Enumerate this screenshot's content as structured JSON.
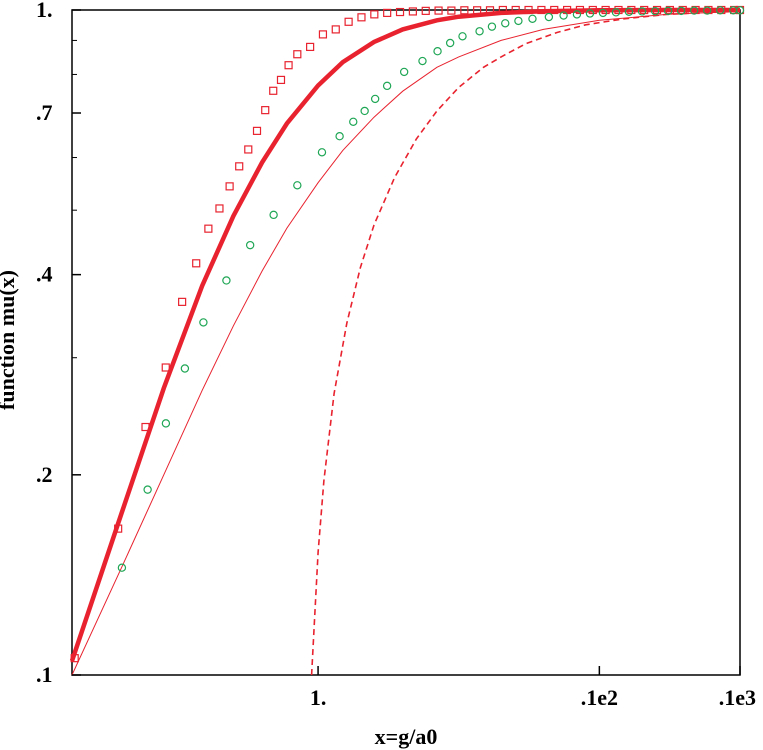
{
  "chart_data": {
    "type": "line",
    "title": "",
    "xlabel": "x=g/a0",
    "ylabel": "function mu(x)",
    "x_scale": "log",
    "y_scale": "log",
    "xlim": [
      0.0178,
      1000
    ],
    "ylim": [
      0.1,
      1.0
    ],
    "x_ticks": [
      {
        "value": 1,
        "label": "1."
      },
      {
        "value": 100,
        "label": ".1e2"
      },
      {
        "value": 1000,
        "label": ".1e3"
      }
    ],
    "y_ticks": [
      {
        "value": 0.1,
        "label": ".1"
      },
      {
        "value": 0.2,
        "label": ".2"
      },
      {
        "value": 0.4,
        "label": ".4"
      },
      {
        "value": 0.7,
        "label": ".7"
      },
      {
        "value": 1.0,
        "label": "1."
      }
    ],
    "y_minor_ticks": [
      0.3,
      0.5,
      0.6,
      0.8,
      0.9
    ],
    "grid": false,
    "series": [
      {
        "style": "thick-line",
        "color": "#e8232f",
        "x": [
          0.0178,
          0.04,
          0.08,
          0.15,
          0.25,
          0.4,
          0.6,
          1.0,
          1.5,
          2.5,
          4,
          7,
          10,
          20,
          40,
          100,
          300,
          1000
        ],
        "y": [
          0.105,
          0.175,
          0.27,
          0.385,
          0.49,
          0.59,
          0.675,
          0.77,
          0.835,
          0.895,
          0.935,
          0.965,
          0.977,
          0.99,
          0.996,
          0.999,
          1.0,
          1.0
        ]
      },
      {
        "style": "thin-line",
        "color": "#e8232f",
        "x": [
          0.0178,
          0.04,
          0.08,
          0.15,
          0.25,
          0.4,
          0.6,
          1.0,
          1.5,
          2.5,
          4,
          7,
          10,
          20,
          40,
          100,
          300,
          1000
        ],
        "y": [
          0.1,
          0.145,
          0.2,
          0.268,
          0.335,
          0.405,
          0.47,
          0.55,
          0.615,
          0.69,
          0.755,
          0.82,
          0.85,
          0.9,
          0.935,
          0.965,
          0.985,
          0.995
        ]
      },
      {
        "style": "dashed-line",
        "color": "#e8232f",
        "x": [
          0.9,
          1.0,
          1.1,
          1.3,
          1.6,
          2.0,
          2.5,
          3.5,
          5,
          7,
          10,
          15,
          20,
          30,
          50,
          80,
          150,
          300,
          600,
          1000
        ],
        "y": [
          0.1,
          0.153,
          0.196,
          0.265,
          0.338,
          0.41,
          0.475,
          0.56,
          0.64,
          0.705,
          0.765,
          0.82,
          0.85,
          0.89,
          0.925,
          0.95,
          0.97,
          0.985,
          0.992,
          0.995
        ]
      },
      {
        "style": "square-markers",
        "color": "#e8232f",
        "x": [
          0.0186,
          0.0379,
          0.0593,
          0.0826,
          0.108,
          0.136,
          0.166,
          0.199,
          0.235,
          0.275,
          0.319,
          0.368,
          0.421,
          0.48,
          0.545,
          0.617,
          0.712,
          0.878,
          1.083,
          1.336,
          1.649,
          2.035,
          2.512,
          3.1,
          3.826,
          4.722,
          5.828,
          7.19,
          8.87,
          10.97,
          13.52,
          16.69,
          20.6,
          25.42,
          31.37,
          38.72,
          47.78,
          58.97,
          72.78,
          89.82,
          110.8,
          136.8,
          168.8,
          208.3,
          257.1,
          317.3,
          391.6,
          483.3,
          596.5,
          736.1,
          908.5,
          1000
        ],
        "y": [
          0.106,
          0.166,
          0.236,
          0.29,
          0.364,
          0.416,
          0.469,
          0.503,
          0.543,
          0.582,
          0.617,
          0.658,
          0.707,
          0.756,
          0.785,
          0.826,
          0.858,
          0.88,
          0.919,
          0.935,
          0.96,
          0.975,
          0.985,
          0.99,
          0.993,
          0.995,
          0.997,
          0.998,
          0.998,
          0.999,
          0.999,
          0.999,
          1.0,
          1.0,
          1.0,
          1.0,
          1.0,
          1.0,
          1.0,
          1.0,
          1.0,
          1.0,
          1.0,
          1.0,
          1.0,
          1.0,
          1.0,
          1.0,
          1.0,
          1.0,
          1.0,
          1.0
        ]
      },
      {
        "style": "circle-markers",
        "color": "#1fa655",
        "x": [
          0.0403,
          0.0614,
          0.0828,
          0.113,
          0.153,
          0.223,
          0.329,
          0.483,
          0.712,
          1.066,
          1.423,
          1.779,
          2.144,
          2.546,
          3.097,
          4.093,
          5.526,
          7.072,
          8.693,
          10.64,
          14.07,
          17.23,
          21.42,
          26.57,
          33.45,
          43.76,
          55.67,
          69.28,
          85.75,
          106.1,
          131.3,
          162.5,
          201.2,
          249.1,
          308.2,
          381.5,
          472.1,
          584.3,
          723.2,
          895.2,
          1000
        ],
        "y": [
          0.145,
          0.19,
          0.239,
          0.289,
          0.339,
          0.392,
          0.443,
          0.492,
          0.545,
          0.611,
          0.646,
          0.679,
          0.705,
          0.735,
          0.769,
          0.807,
          0.838,
          0.867,
          0.892,
          0.913,
          0.929,
          0.944,
          0.955,
          0.963,
          0.97,
          0.976,
          0.981,
          0.985,
          0.988,
          0.99,
          0.992,
          0.994,
          0.995,
          0.996,
          0.997,
          0.997,
          0.998,
          0.998,
          0.999,
          0.999,
          0.999
        ]
      }
    ]
  }
}
